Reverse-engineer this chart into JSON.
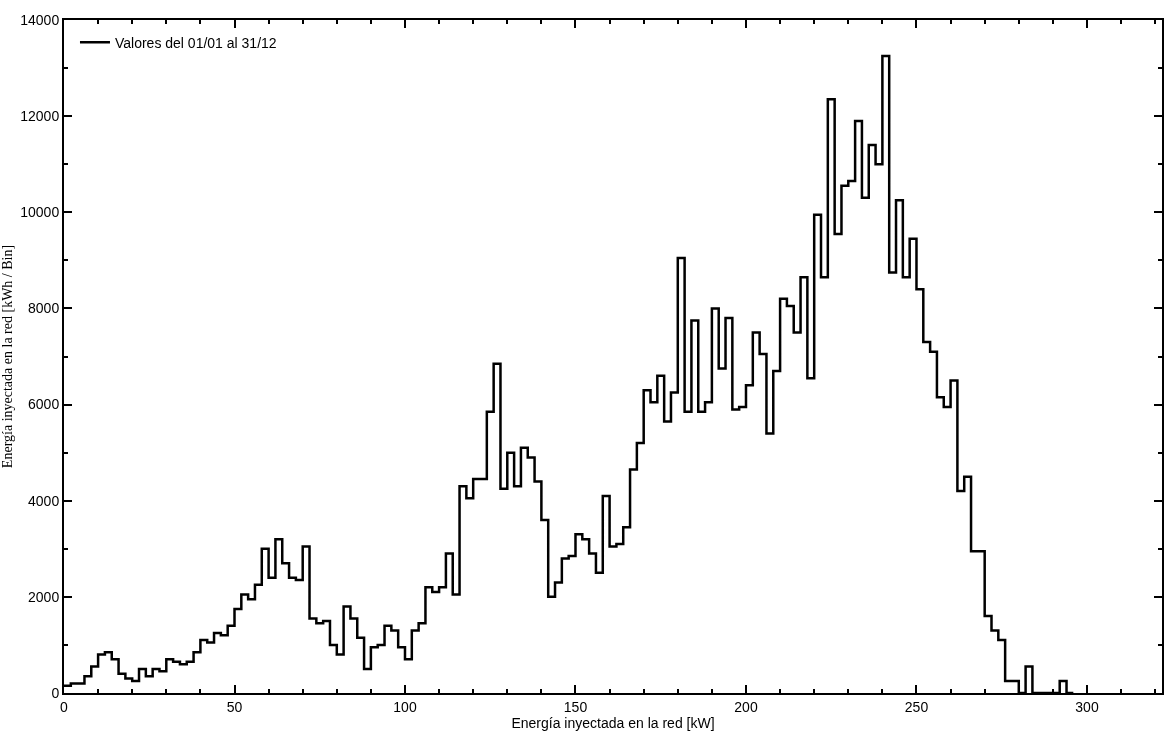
{
  "chart_data": {
    "type": "histogram",
    "xlabel": "Energía inyectada en la red [kW]",
    "ylabel": "Energía inyectada en la red [kWh / Bin]",
    "bins": [
      0,
      2,
      4,
      6,
      8,
      10,
      12,
      14,
      16,
      18,
      20,
      22,
      24,
      26,
      28,
      30,
      32,
      34,
      36,
      38,
      40,
      42,
      44,
      46,
      48,
      50,
      52,
      54,
      56,
      58,
      60,
      62,
      64,
      66,
      68,
      70,
      72,
      74,
      76,
      78,
      80,
      82,
      84,
      86,
      88,
      90,
      92,
      94,
      96,
      98,
      100,
      102,
      104,
      106,
      108,
      110,
      112,
      114,
      116,
      118,
      120,
      122,
      124,
      126,
      128,
      130,
      132,
      134,
      136,
      138,
      140,
      142,
      144,
      146,
      148,
      150,
      152,
      154,
      156,
      158,
      160,
      162,
      164,
      166,
      168,
      170,
      172,
      174,
      176,
      178,
      180,
      182,
      184,
      186,
      188,
      190,
      192,
      194,
      196,
      198,
      200,
      202,
      204,
      206,
      208,
      210,
      212,
      214,
      216,
      218,
      220,
      222,
      224,
      226,
      228,
      230,
      232,
      234,
      236,
      238,
      240,
      242,
      244,
      246,
      248,
      250,
      252,
      254,
      256,
      258,
      260,
      262,
      264,
      266,
      268,
      270,
      272,
      274,
      276,
      278,
      280,
      282,
      284,
      286,
      288,
      290,
      292,
      294,
      296
    ],
    "series": [
      {
        "name": "Valores del 01/01 al 31/12",
        "color": "#000000",
        "values": [
          150,
          200,
          200,
          350,
          550,
          800,
          850,
          700,
          400,
          300,
          250,
          500,
          350,
          500,
          450,
          700,
          650,
          600,
          650,
          850,
          1100,
          1050,
          1250,
          1200,
          1400,
          1750,
          2050,
          1950,
          2250,
          3000,
          2400,
          3200,
          2700,
          2400,
          2350,
          3050,
          1550,
          1450,
          1500,
          1000,
          800,
          1800,
          1550,
          1150,
          500,
          950,
          1000,
          1400,
          1300,
          950,
          700,
          1300,
          1450,
          2200,
          2100,
          2200,
          2900,
          2050,
          4300,
          4050,
          4450,
          4450,
          5850,
          6850,
          4250,
          5000,
          4300,
          5100,
          4900,
          4400,
          3600,
          2000,
          2300,
          2800,
          2850,
          3300,
          3200,
          2900,
          2500,
          4100,
          3050,
          3100,
          3450,
          4650,
          5200,
          6300,
          6050,
          6600,
          5650,
          6250,
          9050,
          5850,
          7750,
          5850,
          6050,
          8000,
          6750,
          7800,
          5900,
          5950,
          6400,
          7500,
          7050,
          5400,
          6700,
          8200,
          8050,
          7500,
          8650,
          6550,
          9950,
          8650,
          12350,
          9550,
          10550,
          10650,
          11900,
          10300,
          11400,
          11000,
          13250,
          8750,
          10250,
          8650,
          9450,
          8400,
          7300,
          7100,
          6150,
          5950,
          6500,
          4200,
          4500,
          2950,
          2950,
          1600,
          1300,
          1100,
          250,
          250,
          0,
          550,
          0,
          0,
          0,
          0,
          250,
          0
        ]
      }
    ],
    "xlim": [
      0,
      322
    ],
    "xticks": [
      0,
      50,
      100,
      150,
      200,
      250,
      300
    ],
    "ylim": [
      0,
      14000
    ],
    "yticks": [
      0,
      2000,
      4000,
      6000,
      8000,
      10000,
      12000,
      14000
    ],
    "legend": "top left",
    "line_style": "solid",
    "marker": "none"
  }
}
